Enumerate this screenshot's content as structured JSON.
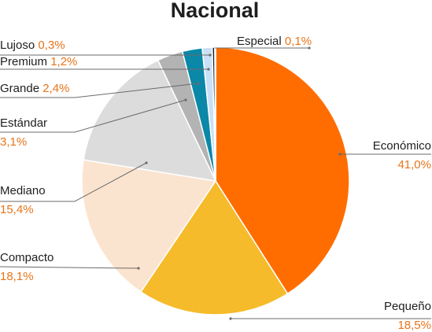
{
  "chart_data": {
    "type": "pie",
    "title": "Nacional",
    "slices": [
      {
        "label": "Económico",
        "value": 41.0,
        "value_label": "41,0%",
        "color": "#ff6d00"
      },
      {
        "label": "Pequeño",
        "value": 18.5,
        "value_label": "18,5%",
        "color": "#f6bb2a"
      },
      {
        "label": "Compacto",
        "value": 18.1,
        "value_label": "18,1%",
        "color": "#fbe4cf"
      },
      {
        "label": "Mediano",
        "value": 15.4,
        "value_label": "15,4%",
        "color": "#dcdcdc"
      },
      {
        "label": "Estándar",
        "value": 3.1,
        "value_label": "3,1%",
        "color": "#b3b3b3"
      },
      {
        "label": "Grande",
        "value": 2.4,
        "value_label": "2,4%",
        "color": "#0b87a8"
      },
      {
        "label": "Premium",
        "value": 1.2,
        "value_label": "1,2%",
        "color": "#c9e0f7"
      },
      {
        "label": "Lujoso",
        "value": 0.3,
        "value_label": "0,3%",
        "color": "#1e1e1e"
      },
      {
        "label": "Especial",
        "value": 0.1,
        "value_label": "0,1%",
        "color": "#8a8a8a"
      }
    ],
    "value_label_color": "#e8741a"
  }
}
